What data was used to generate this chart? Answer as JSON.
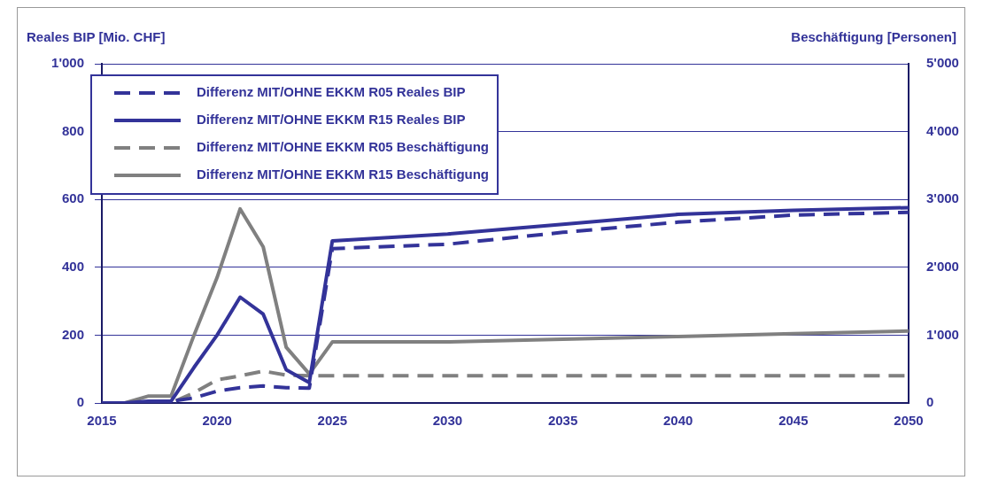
{
  "chart_data": {
    "type": "line",
    "ylabel": "Reales BIP [Mio. CHF]",
    "y2label": "Beschäftigung [Personen]",
    "x": [
      2015,
      2016,
      2017,
      2018,
      2019,
      2020,
      2021,
      2022,
      2023,
      2024,
      2025,
      2030,
      2035,
      2040,
      2045,
      2050
    ],
    "xlim": [
      2015,
      2050
    ],
    "xticks": [
      2015,
      2020,
      2025,
      2030,
      2035,
      2040,
      2045,
      2050
    ],
    "ylim": [
      0,
      1000
    ],
    "yticks": [
      0,
      200,
      400,
      600,
      800,
      {
        "value": 1000,
        "label": "1'000"
      }
    ],
    "y2lim": [
      0,
      5000
    ],
    "y2ticks": [
      0,
      {
        "value": 1000,
        "label": "1'000"
      },
      {
        "value": 2000,
        "label": "2'000"
      },
      {
        "value": 3000,
        "label": "3'000"
      },
      {
        "value": 4000,
        "label": "4'000"
      },
      {
        "value": 5000,
        "label": "5'000"
      }
    ],
    "grid": "y",
    "legend": "top left",
    "marker": "none",
    "series": [
      {
        "name": "Differenz MIT/OHNE EKKM R05 Reales BIP",
        "color": "#333399",
        "line_style": "dashed",
        "values": [
          0,
          0,
          0,
          5,
          15,
          35,
          45,
          50,
          45,
          44,
          455,
          468,
          503,
          533,
          554,
          562
        ]
      },
      {
        "name": "Differenz MIT/OHNE EKKM R15 Reales BIP",
        "color": "#333399",
        "line_style": "solid",
        "values": [
          0,
          0,
          5,
          5,
          105,
          200,
          312,
          262,
          98,
          60,
          478,
          498,
          527,
          556,
          568,
          576
        ]
      },
      {
        "name": "Differenz MIT/OHNE EKKM R05 Beschäftigung",
        "color": "#808080",
        "line_style": "dashed",
        "axis": "y2",
        "values": [
          0,
          0,
          0,
          0,
          150,
          340,
          400,
          470,
          410,
          400,
          400,
          400,
          400,
          400,
          400,
          400
        ]
      },
      {
        "name": "Differenz MIT/OHNE EKKM R15 Beschäftigung",
        "color": "#808080",
        "line_style": "solid",
        "axis": "y2",
        "values": [
          0,
          0,
          100,
          100,
          1000,
          1850,
          2860,
          2300,
          820,
          430,
          900,
          900,
          940,
          980,
          1020,
          1060
        ]
      }
    ]
  }
}
